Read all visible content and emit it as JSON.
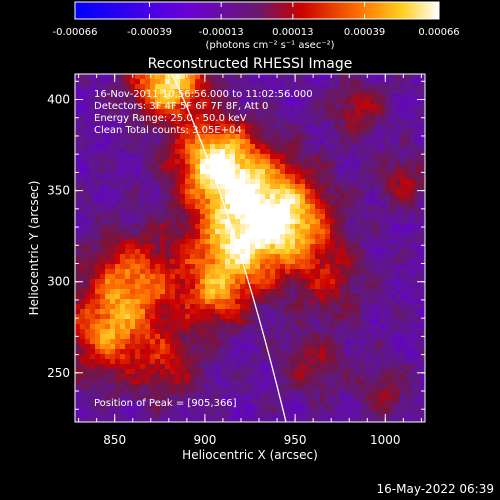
{
  "chart_data": {
    "type": "heatmap",
    "title": "Reconstructed RHESSI Image",
    "xlabel": "Heliocentric X (arcsec)",
    "ylabel": "Heliocentric Y (arcsec)",
    "xlim": [
      828,
      1022
    ],
    "ylim": [
      223,
      414
    ],
    "x_ticks": [
      850,
      900,
      950,
      1000
    ],
    "y_ticks": [
      250,
      300,
      350,
      400
    ],
    "colorbar": {
      "ticks": [
        "-0.00066",
        "-0.00039",
        "-0.00013",
        "0.00013",
        "0.00039",
        "0.00066"
      ],
      "tick_values": [
        -0.00066,
        -0.00039,
        -0.00013,
        0.00013,
        0.00039,
        0.00066
      ],
      "units": "(photons cm⁻² s⁻¹ asec⁻²)"
    },
    "annotations": [
      "16-Nov-2011 10:56:56.000 to 11:02:56.000",
      "Detectors: 3F 4F 5F 6F 7F 8F, Att 0",
      "Energy Range: 25.0 - 50.0 keV",
      "Clean     Total counts: 3.05E+04"
    ],
    "peak_label": "Position of Peak = [905,366]",
    "peak": [
      905,
      366
    ],
    "grid": false,
    "legend": "none"
  },
  "footer_timestamp": "16-May-2022 06:39"
}
